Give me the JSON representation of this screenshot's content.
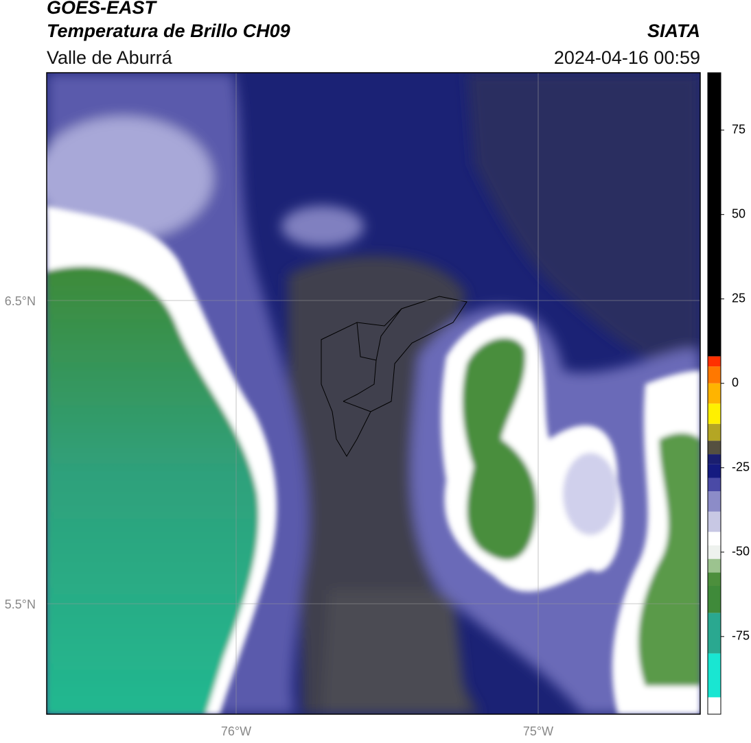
{
  "header": {
    "source": "GOES-EAST",
    "title": "Temperatura de Brillo CH09",
    "region": "Valle de Aburrá",
    "agency": "SIATA",
    "datetime": "2024-04-16 00:59"
  },
  "map": {
    "lat_labels": [
      "6.5°N",
      "5.5°N"
    ],
    "lon_labels": [
      "76°W",
      "75°W"
    ]
  },
  "colorbar": {
    "range": [
      -98,
      92
    ],
    "ticks": [
      75,
      50,
      25,
      0,
      -25,
      -50,
      -75
    ],
    "stops": [
      {
        "value": -98,
        "color": "#ffffff"
      },
      {
        "value": -93,
        "color": "#19e6d2"
      },
      {
        "value": -80,
        "color": "#2aa890"
      },
      {
        "value": -68,
        "color": "#3f8a3a"
      },
      {
        "value": -60,
        "color": "#4c8f3c"
      },
      {
        "value": -56,
        "color": "#9cc38f"
      },
      {
        "value": -52,
        "color": "#eef2ee"
      },
      {
        "value": -48,
        "color": "#ffffff"
      },
      {
        "value": -44,
        "color": "#c8c8e4"
      },
      {
        "value": -38,
        "color": "#8c8cc8"
      },
      {
        "value": -32,
        "color": "#4a4aa6"
      },
      {
        "value": -28,
        "color": "#141a80"
      },
      {
        "value": -24,
        "color": "#1a1e70"
      },
      {
        "value": -21,
        "color": "#555040"
      },
      {
        "value": -17,
        "color": "#b4a624"
      },
      {
        "value": -12,
        "color": "#fff000"
      },
      {
        "value": -6,
        "color": "#ffb400"
      },
      {
        "value": 0,
        "color": "#ff7800"
      },
      {
        "value": 5,
        "color": "#ff3000"
      },
      {
        "value": 8,
        "color": "#000000"
      }
    ]
  }
}
